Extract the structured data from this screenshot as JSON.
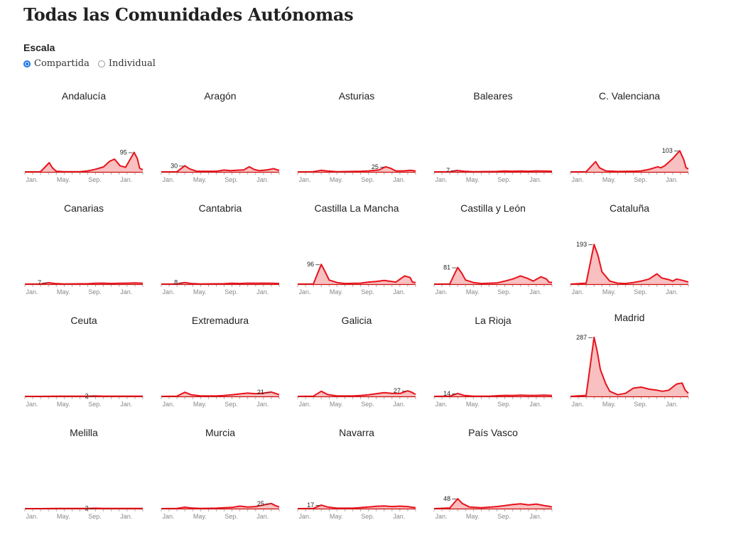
{
  "page": {
    "title": "Todas las Comunidades Autónomas",
    "scale_label": "Escala",
    "scale_options": [
      {
        "label": "Compartida",
        "selected": true
      },
      {
        "label": "Individual",
        "selected": false
      }
    ]
  },
  "colors": {
    "line": "#e8121c",
    "fill": "#f8c0c0",
    "axis": "#cc1111"
  },
  "chart_data": {
    "type": "area",
    "shared_ylim": [
      0,
      290
    ],
    "x_tick_labels": [
      "Jan.",
      "May.",
      "Sep.",
      "Jan."
    ],
    "x_tick_positions": [
      0,
      4,
      8,
      12
    ],
    "x_range": [
      0,
      15
    ],
    "panels": [
      {
        "name": "Andalucía",
        "label_value": 95,
        "points": [
          [
            0,
            0
          ],
          [
            2,
            1
          ],
          [
            3.1,
            45
          ],
          [
            3.5,
            20
          ],
          [
            4,
            3
          ],
          [
            5,
            1
          ],
          [
            7,
            1
          ],
          [
            8,
            5
          ],
          [
            9,
            13
          ],
          [
            10,
            24
          ],
          [
            10.8,
            52
          ],
          [
            11.4,
            62
          ],
          [
            12.1,
            30
          ],
          [
            12.8,
            22
          ],
          [
            13.9,
            95
          ],
          [
            14.3,
            65
          ],
          [
            14.6,
            18
          ],
          [
            15,
            10
          ]
        ]
      },
      {
        "name": "Aragón",
        "label_value": 30,
        "points": [
          [
            0,
            0
          ],
          [
            2,
            1
          ],
          [
            3,
            30
          ],
          [
            3.6,
            15
          ],
          [
            4.5,
            3
          ],
          [
            7,
            3
          ],
          [
            8,
            9
          ],
          [
            8.8,
            6
          ],
          [
            9.5,
            8
          ],
          [
            10.5,
            10
          ],
          [
            11.2,
            25
          ],
          [
            11.8,
            12
          ],
          [
            12.5,
            6
          ],
          [
            13.5,
            10
          ],
          [
            14.3,
            16
          ],
          [
            15,
            7
          ]
        ]
      },
      {
        "name": "Asturias",
        "label_value": 25,
        "points": [
          [
            0,
            0
          ],
          [
            2,
            1
          ],
          [
            3,
            8
          ],
          [
            3.8,
            4
          ],
          [
            5,
            1
          ],
          [
            8,
            3
          ],
          [
            9,
            5
          ],
          [
            10.3,
            9
          ],
          [
            11.2,
            25
          ],
          [
            11.8,
            18
          ],
          [
            12.5,
            5
          ],
          [
            13.5,
            5
          ],
          [
            14.3,
            8
          ],
          [
            15,
            5
          ]
        ]
      },
      {
        "name": "Baleares",
        "label_value": 7,
        "points": [
          [
            0,
            0
          ],
          [
            2,
            1
          ],
          [
            2.9,
            7
          ],
          [
            3.8,
            3
          ],
          [
            5,
            1
          ],
          [
            8,
            2
          ],
          [
            9,
            4
          ],
          [
            10,
            3
          ],
          [
            11,
            4
          ],
          [
            12,
            3
          ],
          [
            13,
            5
          ],
          [
            14,
            4
          ],
          [
            15,
            3
          ]
        ]
      },
      {
        "name": "C. Valenciana",
        "label_value": 103,
        "points": [
          [
            0,
            0
          ],
          [
            2,
            1
          ],
          [
            3.2,
            50
          ],
          [
            3.7,
            20
          ],
          [
            4.5,
            5
          ],
          [
            6,
            2
          ],
          [
            8,
            3
          ],
          [
            9,
            5
          ],
          [
            10,
            12
          ],
          [
            11.1,
            25
          ],
          [
            11.5,
            20
          ],
          [
            12,
            30
          ],
          [
            13,
            65
          ],
          [
            13.9,
            103
          ],
          [
            14.4,
            60
          ],
          [
            14.7,
            20
          ],
          [
            15,
            15
          ]
        ]
      },
      {
        "name": "Canarias",
        "label_value": 7,
        "points": [
          [
            0,
            0
          ],
          [
            2,
            1
          ],
          [
            3,
            7
          ],
          [
            3.8,
            3
          ],
          [
            5,
            1
          ],
          [
            8,
            2
          ],
          [
            9,
            4
          ],
          [
            10,
            5
          ],
          [
            11,
            3
          ],
          [
            12,
            4
          ],
          [
            13,
            5
          ],
          [
            14,
            6
          ],
          [
            15,
            4
          ]
        ]
      },
      {
        "name": "Cantabria",
        "label_value": 8,
        "points": [
          [
            0,
            0
          ],
          [
            2,
            1
          ],
          [
            3,
            8
          ],
          [
            3.8,
            3
          ],
          [
            5,
            1
          ],
          [
            8,
            2
          ],
          [
            9,
            4
          ],
          [
            10,
            3
          ],
          [
            11,
            5
          ],
          [
            12,
            4
          ],
          [
            13,
            5
          ],
          [
            14,
            4
          ],
          [
            15,
            3
          ]
        ]
      },
      {
        "name": "Castilla La Mancha",
        "label_value": 96,
        "points": [
          [
            0,
            0
          ],
          [
            2,
            1
          ],
          [
            3,
            96
          ],
          [
            3.5,
            60
          ],
          [
            4,
            20
          ],
          [
            5,
            8
          ],
          [
            6,
            3
          ],
          [
            8,
            5
          ],
          [
            9,
            10
          ],
          [
            10,
            13
          ],
          [
            11,
            18
          ],
          [
            11.7,
            14
          ],
          [
            12.5,
            10
          ],
          [
            13.6,
            40
          ],
          [
            14.3,
            32
          ],
          [
            14.6,
            10
          ],
          [
            15,
            8
          ]
        ]
      },
      {
        "name": "Castilla y León",
        "label_value": 81,
        "points": [
          [
            0,
            0
          ],
          [
            2,
            1
          ],
          [
            3,
            81
          ],
          [
            3.5,
            55
          ],
          [
            4,
            20
          ],
          [
            5,
            8
          ],
          [
            6,
            3
          ],
          [
            8,
            6
          ],
          [
            9,
            15
          ],
          [
            10,
            25
          ],
          [
            11,
            40
          ],
          [
            11.9,
            28
          ],
          [
            12.6,
            15
          ],
          [
            13.6,
            36
          ],
          [
            14.3,
            25
          ],
          [
            14.6,
            10
          ],
          [
            15,
            8
          ]
        ]
      },
      {
        "name": "Cataluña",
        "label_value": 193,
        "points": [
          [
            0,
            0
          ],
          [
            2,
            5
          ],
          [
            3,
            193
          ],
          [
            3.5,
            140
          ],
          [
            4,
            60
          ],
          [
            5,
            15
          ],
          [
            6,
            5
          ],
          [
            7,
            3
          ],
          [
            8,
            8
          ],
          [
            9,
            15
          ],
          [
            10,
            25
          ],
          [
            11,
            50
          ],
          [
            11.6,
            30
          ],
          [
            12.5,
            22
          ],
          [
            13,
            15
          ],
          [
            13.5,
            25
          ],
          [
            14.3,
            18
          ],
          [
            15,
            10
          ]
        ]
      },
      {
        "name": "Ceuta",
        "label_value": 2,
        "points": [
          [
            0,
            0
          ],
          [
            2,
            0
          ],
          [
            4,
            1
          ],
          [
            8,
            1
          ],
          [
            9,
            2
          ],
          [
            10,
            1
          ],
          [
            12,
            1
          ],
          [
            15,
            1
          ]
        ]
      },
      {
        "name": "Extremadura",
        "label_value": 21,
        "points": [
          [
            0,
            0
          ],
          [
            2,
            1
          ],
          [
            3,
            20
          ],
          [
            3.8,
            8
          ],
          [
            5,
            2
          ],
          [
            7,
            2
          ],
          [
            8,
            4
          ],
          [
            9,
            8
          ],
          [
            10,
            12
          ],
          [
            11,
            16
          ],
          [
            12,
            13
          ],
          [
            13,
            16
          ],
          [
            14,
            21
          ],
          [
            14.5,
            15
          ],
          [
            15,
            8
          ]
        ]
      },
      {
        "name": "Galicia",
        "label_value": 27,
        "points": [
          [
            0,
            0
          ],
          [
            2,
            1
          ],
          [
            3,
            25
          ],
          [
            3.8,
            9
          ],
          [
            5,
            2
          ],
          [
            7,
            2
          ],
          [
            8,
            4
          ],
          [
            9,
            8
          ],
          [
            10,
            13
          ],
          [
            11,
            18
          ],
          [
            12,
            15
          ],
          [
            13,
            14
          ],
          [
            14,
            27
          ],
          [
            14.5,
            20
          ],
          [
            15,
            10
          ]
        ]
      },
      {
        "name": "La Rioja",
        "label_value": 14,
        "points": [
          [
            0,
            0
          ],
          [
            2,
            1
          ],
          [
            3,
            14
          ],
          [
            3.8,
            5
          ],
          [
            5,
            1
          ],
          [
            7,
            1
          ],
          [
            8,
            3
          ],
          [
            9,
            5
          ],
          [
            10,
            4
          ],
          [
            11,
            6
          ],
          [
            12,
            5
          ],
          [
            13,
            5
          ],
          [
            14,
            6
          ],
          [
            15,
            4
          ]
        ]
      },
      {
        "name": "Madrid",
        "label_value": 287,
        "points": [
          [
            0,
            0
          ],
          [
            2,
            5
          ],
          [
            3,
            287
          ],
          [
            3.4,
            220
          ],
          [
            3.8,
            130
          ],
          [
            4.5,
            60
          ],
          [
            5,
            25
          ],
          [
            6,
            8
          ],
          [
            7,
            15
          ],
          [
            8,
            40
          ],
          [
            9,
            45
          ],
          [
            10,
            35
          ],
          [
            11,
            30
          ],
          [
            11.7,
            25
          ],
          [
            12.5,
            30
          ],
          [
            13.5,
            60
          ],
          [
            14.2,
            65
          ],
          [
            14.6,
            30
          ],
          [
            15,
            15
          ]
        ]
      },
      {
        "name": "Melilla",
        "label_value": 2,
        "points": [
          [
            0,
            0
          ],
          [
            2,
            0
          ],
          [
            4,
            1
          ],
          [
            8,
            1
          ],
          [
            9,
            2
          ],
          [
            10,
            1
          ],
          [
            12,
            1
          ],
          [
            15,
            1
          ]
        ]
      },
      {
        "name": "Murcia",
        "label_value": 25,
        "points": [
          [
            0,
            0
          ],
          [
            2,
            1
          ],
          [
            3,
            7
          ],
          [
            3.8,
            3
          ],
          [
            5,
            1
          ],
          [
            7,
            2
          ],
          [
            8,
            4
          ],
          [
            9,
            6
          ],
          [
            10,
            12
          ],
          [
            11,
            8
          ],
          [
            12,
            10
          ],
          [
            13,
            18
          ],
          [
            14,
            25
          ],
          [
            14.5,
            15
          ],
          [
            15,
            8
          ]
        ]
      },
      {
        "name": "Navarra",
        "label_value": 17,
        "points": [
          [
            0,
            0
          ],
          [
            2,
            1
          ],
          [
            3,
            17
          ],
          [
            3.8,
            8
          ],
          [
            5,
            2
          ],
          [
            7,
            2
          ],
          [
            8,
            5
          ],
          [
            9,
            8
          ],
          [
            10,
            11
          ],
          [
            11,
            13
          ],
          [
            12,
            10
          ],
          [
            13,
            12
          ],
          [
            14,
            10
          ],
          [
            14.5,
            7
          ],
          [
            15,
            5
          ]
        ]
      },
      {
        "name": "País Vasco",
        "label_value": 48,
        "points": [
          [
            0,
            0
          ],
          [
            2,
            3
          ],
          [
            3,
            48
          ],
          [
            3.6,
            25
          ],
          [
            4.5,
            8
          ],
          [
            6,
            4
          ],
          [
            8,
            10
          ],
          [
            9,
            15
          ],
          [
            10,
            20
          ],
          [
            11,
            23
          ],
          [
            12,
            18
          ],
          [
            13,
            22
          ],
          [
            14,
            15
          ],
          [
            14.5,
            12
          ],
          [
            15,
            8
          ]
        ]
      }
    ]
  }
}
